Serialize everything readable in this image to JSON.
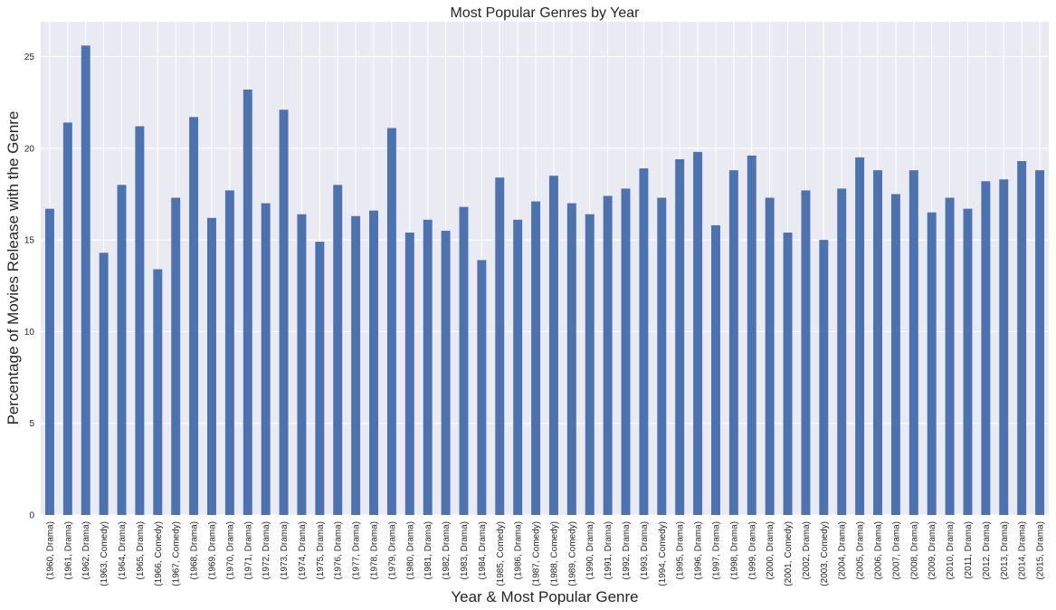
{
  "chart_data": {
    "type": "bar",
    "title": "Most Popular Genres by Year",
    "xlabel": "Year & Most Popular Genre",
    "ylabel": "Percentage of Movies Release with the Genre",
    "ylim": [
      0,
      26.9
    ],
    "yticks": [
      0,
      5,
      10,
      15,
      20,
      25
    ],
    "grid": true,
    "legend": "none",
    "colors": {
      "bar": "#4c72b0",
      "background": "#eaeaf2",
      "grid": "#ffffff"
    },
    "categories": [
      "(1960, Drama)",
      "(1961, Drama)",
      "(1962, Drama)",
      "(1963, Comedy)",
      "(1964, Drama)",
      "(1965, Drama)",
      "(1966, Comedy)",
      "(1967, Comedy)",
      "(1968, Drama)",
      "(1969, Drama)",
      "(1970, Drama)",
      "(1971, Drama)",
      "(1972, Drama)",
      "(1973, Drama)",
      "(1974, Drama)",
      "(1975, Drama)",
      "(1976, Drama)",
      "(1977, Drama)",
      "(1978, Drama)",
      "(1979, Drama)",
      "(1980, Drama)",
      "(1981, Drama)",
      "(1982, Drama)",
      "(1983, Drama)",
      "(1984, Drama)",
      "(1985, Comedy)",
      "(1986, Drama)",
      "(1987, Comedy)",
      "(1988, Comedy)",
      "(1989, Comedy)",
      "(1990, Drama)",
      "(1991, Drama)",
      "(1992, Drama)",
      "(1993, Drama)",
      "(1994, Comedy)",
      "(1995, Drama)",
      "(1996, Drama)",
      "(1997, Drama)",
      "(1998, Drama)",
      "(1999, Drama)",
      "(2000, Drama)",
      "(2001, Comedy)",
      "(2002, Drama)",
      "(2003, Comedy)",
      "(2004, Drama)",
      "(2005, Drama)",
      "(2006, Drama)",
      "(2007, Drama)",
      "(2008, Drama)",
      "(2009, Drama)",
      "(2010, Drama)",
      "(2011, Drama)",
      "(2012, Drama)",
      "(2013, Drama)",
      "(2014, Drama)",
      "(2015, Drama)"
    ],
    "values": [
      16.7,
      21.4,
      25.6,
      14.3,
      18.0,
      21.2,
      13.4,
      17.3,
      21.7,
      16.2,
      17.7,
      23.2,
      17.0,
      22.1,
      16.4,
      14.9,
      18.0,
      16.3,
      16.6,
      21.1,
      15.4,
      16.1,
      15.5,
      16.8,
      13.9,
      18.4,
      16.1,
      17.1,
      18.5,
      17.0,
      16.4,
      17.4,
      17.8,
      18.9,
      17.3,
      19.4,
      19.8,
      15.8,
      18.8,
      19.6,
      17.3,
      15.4,
      17.7,
      15.0,
      17.8,
      19.5,
      18.8,
      17.5,
      18.8,
      16.5,
      17.3,
      16.7,
      18.2,
      18.3,
      19.3,
      18.8
    ]
  }
}
